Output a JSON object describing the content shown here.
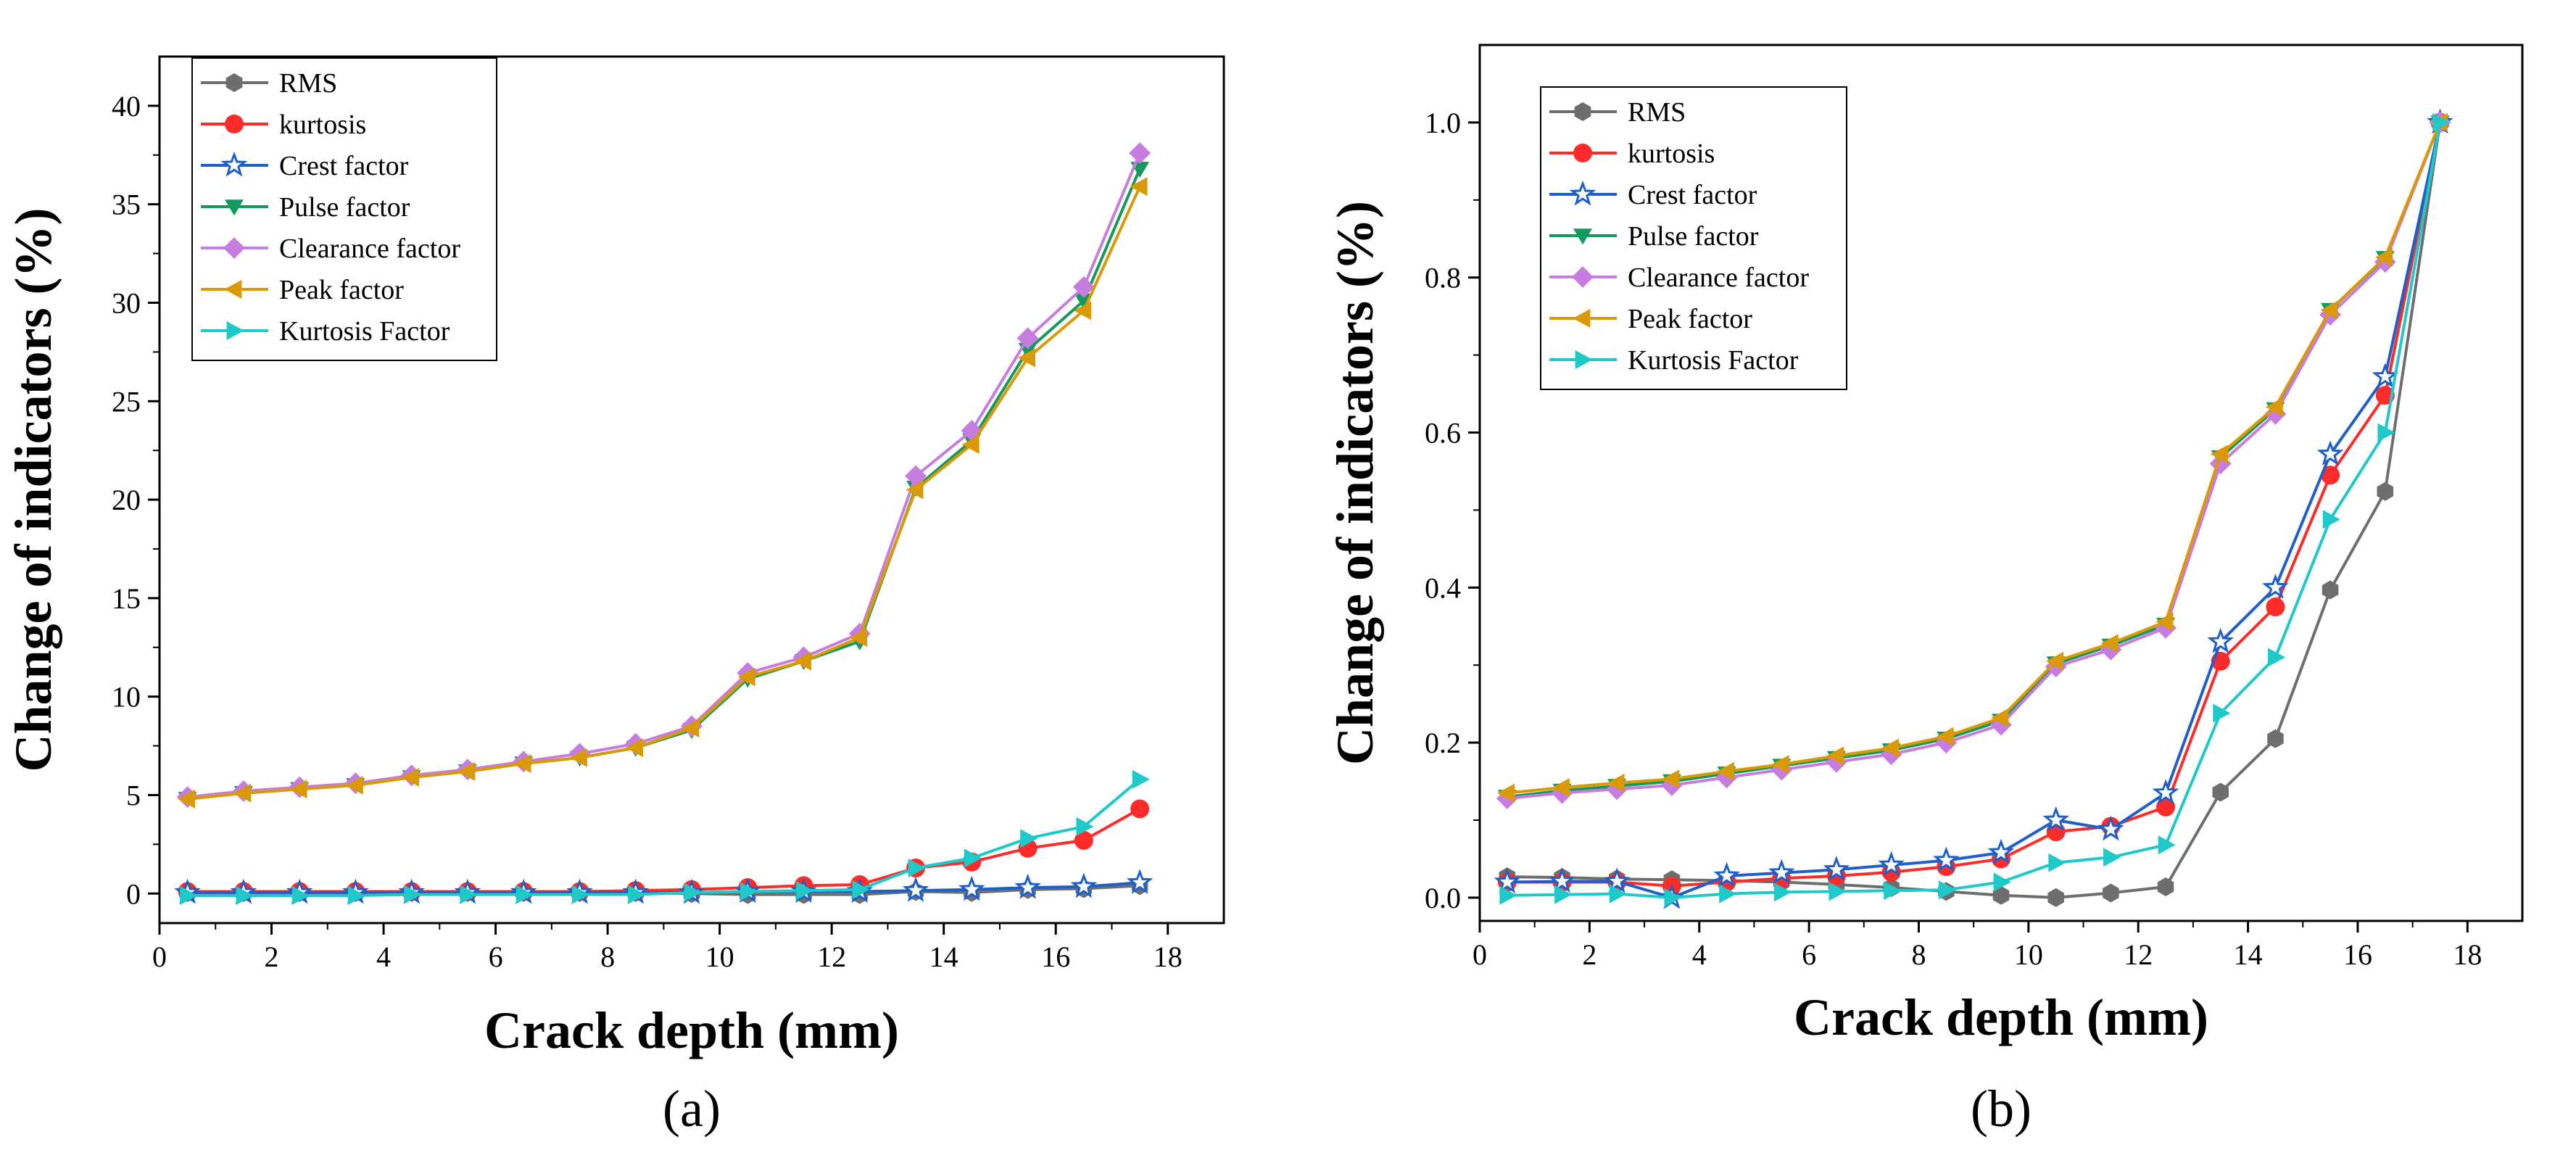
{
  "chart_data": [
    {
      "panel": "a",
      "panel_label_text": "(a)",
      "type": "line",
      "title": "",
      "xlabel": "Crack depth (mm)",
      "ylabel": "Change of indicators (%)",
      "xlim": [
        0,
        19
      ],
      "ylim": [
        -1.5,
        42.5
      ],
      "xticks": [
        0,
        2,
        4,
        6,
        8,
        10,
        12,
        14,
        16,
        18
      ],
      "yticks": [
        0,
        5,
        10,
        15,
        20,
        25,
        30,
        35,
        40
      ],
      "x": [
        0.5,
        1.5,
        2.5,
        3.5,
        4.5,
        5.5,
        6.5,
        7.5,
        8.5,
        9.5,
        10.5,
        11.5,
        12.5,
        13.5,
        14.5,
        15.5,
        16.5,
        17.5
      ],
      "legend_position": "top-left",
      "series": [
        {
          "name": "RMS",
          "color": "#6e6e6e",
          "marker": "hexagon",
          "values": [
            0.05,
            0.05,
            0.05,
            0.05,
            0.05,
            0.05,
            0.05,
            0.05,
            0.05,
            0.0,
            -0.05,
            -0.05,
            -0.05,
            0.1,
            0.05,
            0.2,
            0.25,
            0.4
          ]
        },
        {
          "name": "kurtosis",
          "color": "#ff2a2a",
          "marker": "circle",
          "values": [
            0.1,
            0.1,
            0.1,
            0.1,
            0.1,
            0.1,
            0.1,
            0.1,
            0.15,
            0.2,
            0.3,
            0.4,
            0.45,
            1.3,
            1.6,
            2.3,
            2.7,
            4.3
          ]
        },
        {
          "name": "Crest factor",
          "color": "#1f5fc9",
          "marker": "star",
          "values": [
            0.05,
            0.05,
            0.05,
            0.05,
            0.05,
            0.05,
            0.05,
            0.05,
            0.05,
            0.05,
            0.1,
            0.1,
            0.1,
            0.15,
            0.2,
            0.3,
            0.35,
            0.55
          ]
        },
        {
          "name": "Pulse factor",
          "color": "#129a5f",
          "marker": "triangle-down",
          "values": [
            4.8,
            5.1,
            5.3,
            5.5,
            5.9,
            6.2,
            6.6,
            6.9,
            7.4,
            8.3,
            10.9,
            11.8,
            12.8,
            20.6,
            23.0,
            27.6,
            30.1,
            36.8
          ]
        },
        {
          "name": "Clearance factor",
          "color": "#c77de0",
          "marker": "diamond",
          "values": [
            4.9,
            5.2,
            5.4,
            5.6,
            6.0,
            6.3,
            6.7,
            7.1,
            7.6,
            8.5,
            11.2,
            12.0,
            13.2,
            21.2,
            23.5,
            28.2,
            30.8,
            37.6
          ]
        },
        {
          "name": "Peak factor",
          "color": "#d99a05",
          "marker": "triangle-left",
          "values": [
            4.8,
            5.1,
            5.3,
            5.5,
            5.9,
            6.2,
            6.6,
            6.9,
            7.4,
            8.4,
            11.0,
            11.8,
            13.0,
            20.5,
            22.8,
            27.2,
            29.6,
            35.9
          ]
        },
        {
          "name": "Kurtosis Factor",
          "color": "#1ec9c9",
          "marker": "triangle-right",
          "values": [
            -0.1,
            -0.1,
            -0.1,
            -0.1,
            -0.05,
            -0.05,
            -0.05,
            -0.05,
            -0.05,
            0.05,
            0.1,
            0.15,
            0.2,
            1.3,
            1.8,
            2.8,
            3.4,
            5.8
          ]
        }
      ]
    },
    {
      "panel": "b",
      "panel_label_text": "(b)",
      "type": "line",
      "title": "",
      "xlabel": "Crack depth (mm)",
      "ylabel": "Change of indicators (%)",
      "xlim": [
        0,
        19
      ],
      "ylim": [
        -0.03,
        1.1
      ],
      "xticks": [
        0,
        2,
        4,
        6,
        8,
        10,
        12,
        14,
        16,
        18
      ],
      "yticks": [
        0.0,
        0.2,
        0.4,
        0.6,
        0.8,
        1.0
      ],
      "ytick_labels": [
        "0.0",
        "0.2",
        "0.4",
        "0.6",
        "0.8",
        "1.0"
      ],
      "x": [
        0.5,
        1.5,
        2.5,
        3.5,
        4.5,
        5.5,
        6.5,
        7.5,
        8.5,
        9.5,
        10.5,
        11.5,
        12.5,
        13.5,
        14.5,
        15.5,
        16.5,
        17.5
      ],
      "legend_position": "top-left",
      "series": [
        {
          "name": "RMS",
          "color": "#6e6e6e",
          "marker": "hexagon",
          "values": [
            0.027,
            0.026,
            0.024,
            0.023,
            0.022,
            0.02,
            0.017,
            0.013,
            0.008,
            0.003,
            0.0,
            0.006,
            0.014,
            0.136,
            0.205,
            0.397,
            0.524,
            1.0
          ]
        },
        {
          "name": "kurtosis",
          "color": "#ff2a2a",
          "marker": "circle",
          "values": [
            0.02,
            0.02,
            0.02,
            0.015,
            0.02,
            0.025,
            0.028,
            0.033,
            0.04,
            0.05,
            0.085,
            0.092,
            0.117,
            0.305,
            0.375,
            0.545,
            0.648,
            1.0
          ]
        },
        {
          "name": "Crest factor",
          "color": "#1f5fc9",
          "marker": "star",
          "values": [
            0.02,
            0.021,
            0.021,
            0.0,
            0.028,
            0.032,
            0.036,
            0.042,
            0.048,
            0.058,
            0.1,
            0.088,
            0.135,
            0.33,
            0.4,
            0.572,
            0.672,
            1.0
          ]
        },
        {
          "name": "Pulse factor",
          "color": "#129a5f",
          "marker": "triangle-down",
          "values": [
            0.13,
            0.138,
            0.144,
            0.15,
            0.16,
            0.17,
            0.18,
            0.19,
            0.205,
            0.228,
            0.302,
            0.325,
            0.352,
            0.568,
            0.63,
            0.758,
            0.825,
            1.0
          ]
        },
        {
          "name": "Clearance factor",
          "color": "#c77de0",
          "marker": "diamond",
          "values": [
            0.128,
            0.135,
            0.14,
            0.145,
            0.155,
            0.165,
            0.175,
            0.185,
            0.2,
            0.223,
            0.298,
            0.32,
            0.348,
            0.56,
            0.624,
            0.752,
            0.82,
            1.0
          ]
        },
        {
          "name": "Peak factor",
          "color": "#d99a05",
          "marker": "triangle-left",
          "values": [
            0.135,
            0.142,
            0.148,
            0.153,
            0.163,
            0.172,
            0.183,
            0.193,
            0.208,
            0.232,
            0.305,
            0.328,
            0.356,
            0.572,
            0.633,
            0.758,
            0.826,
            1.0
          ]
        },
        {
          "name": "Kurtosis Factor",
          "color": "#1ec9c9",
          "marker": "triangle-right",
          "values": [
            0.003,
            0.004,
            0.005,
            0.0,
            0.005,
            0.007,
            0.008,
            0.009,
            0.01,
            0.02,
            0.045,
            0.052,
            0.068,
            0.238,
            0.31,
            0.488,
            0.6,
            1.0
          ]
        }
      ]
    }
  ]
}
